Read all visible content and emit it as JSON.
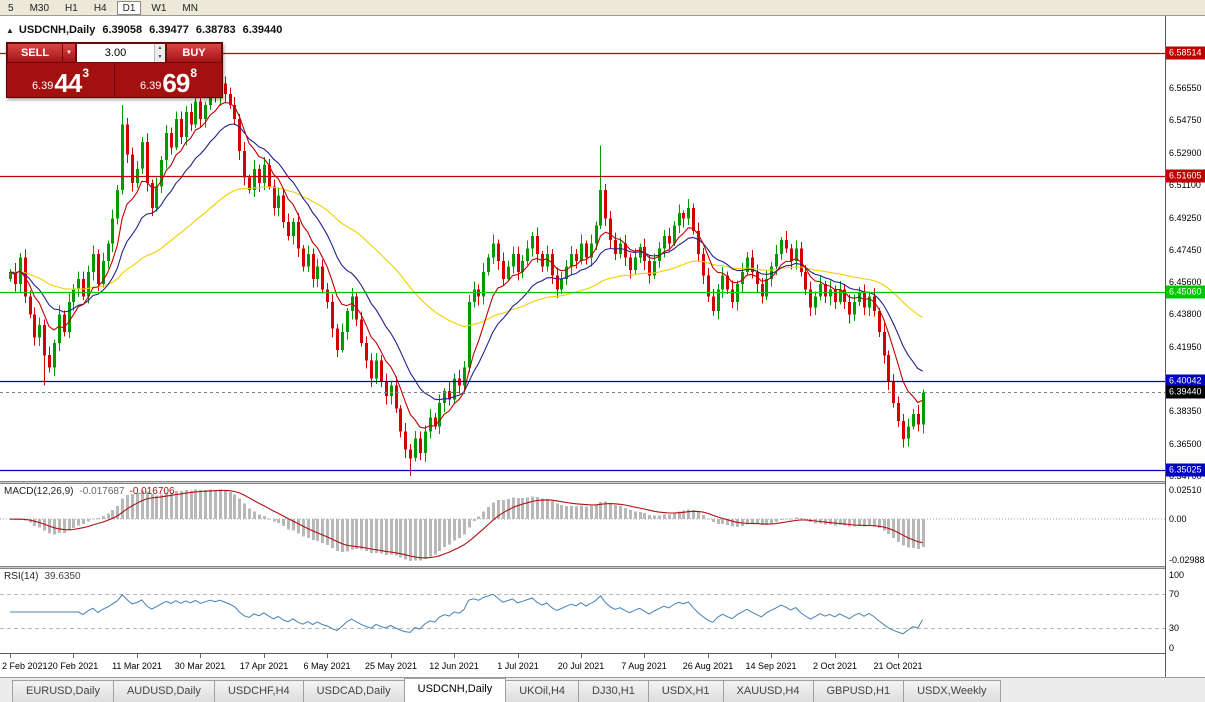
{
  "toolbar": {
    "timeframes": [
      "5",
      "M30",
      "H1",
      "H4",
      "D1",
      "W1",
      "MN"
    ],
    "active_timeframe": "D1"
  },
  "chart_title": {
    "symbol": "USDCNH,Daily",
    "open": "6.39058",
    "high": "6.39477",
    "low": "6.38783",
    "close": "6.39440"
  },
  "trade_panel": {
    "sell_label": "SELL",
    "buy_label": "BUY",
    "volume": "3.00",
    "bid": {
      "prefix": "6.39",
      "big": "44",
      "sup": "3"
    },
    "ask": {
      "prefix": "6.39",
      "big": "69",
      "sup": "8"
    },
    "panel_color": "#a31010"
  },
  "tabs": {
    "active_index": 4,
    "items": [
      "EURUSD,Daily",
      "AUDUSD,Daily",
      "USDCHF,H4",
      "USDCAD,Daily",
      "USDCNH,Daily",
      "UKOil,H4",
      "DJ30,H1",
      "USDX,H1",
      "XAUUSD,H4",
      "GBPUSD,H1",
      "USDX,Weekly"
    ]
  },
  "chart_data": {
    "type": "candlestick",
    "symbol": "USDCNH",
    "period": "Daily",
    "up_color": "#009a00",
    "down_color": "#d40000",
    "price_range": [
      6.3442,
      6.606
    ],
    "price_axis_ticks": [
      6.5655,
      6.5475,
      6.529,
      6.511,
      6.4925,
      6.4745,
      6.456,
      6.438,
      6.4195,
      6.4015,
      6.3835,
      6.365,
      6.347
    ],
    "price_axis_labels": [
      "6.56550",
      "6.54750",
      "6.52900",
      "6.51100",
      "6.49250",
      "6.47450",
      "6.45600",
      "6.43800",
      "6.41950",
      "6.40150",
      "6.38350",
      "6.36500",
      "6.34700"
    ],
    "hlines": [
      {
        "price": 6.58514,
        "label": "6.58514",
        "color": "#c00000"
      },
      {
        "price": 6.51605,
        "label": "6.51605",
        "color": "#c00000"
      },
      {
        "price": 6.4506,
        "label": "6.45060",
        "color": "#00c800"
      },
      {
        "price": 6.40042,
        "label": "6.40042",
        "color": "#0000c0"
      },
      {
        "price": 6.35025,
        "label": "6.35025",
        "color": "#0000c0"
      }
    ],
    "current_price": {
      "value": 6.3944,
      "label": "6.39440",
      "tag_color": "#000000"
    },
    "moving_averages": [
      {
        "period": 8,
        "color": "#c00000"
      },
      {
        "period": 17,
        "color": "#202090"
      },
      {
        "period": 55,
        "color": "#efd000"
      }
    ],
    "closes": [
      6.462,
      6.455,
      6.47,
      6.448,
      6.438,
      6.425,
      6.432,
      6.415,
      6.408,
      6.422,
      6.438,
      6.428,
      6.445,
      6.452,
      6.458,
      6.448,
      6.462,
      6.472,
      6.455,
      6.468,
      6.478,
      6.492,
      6.508,
      6.545,
      6.528,
      6.512,
      6.52,
      6.535,
      6.512,
      6.498,
      6.51,
      6.525,
      6.54,
      6.532,
      6.548,
      6.538,
      6.552,
      6.545,
      6.558,
      6.548,
      6.556,
      6.565,
      6.56,
      6.568,
      6.562,
      6.556,
      6.548,
      6.53,
      6.515,
      6.508,
      6.52,
      6.512,
      6.522,
      6.51,
      6.498,
      6.505,
      6.49,
      6.482,
      6.49,
      6.475,
      6.465,
      6.472,
      6.458,
      6.465,
      6.452,
      6.445,
      6.43,
      6.418,
      6.428,
      6.44,
      6.448,
      6.435,
      6.422,
      6.412,
      6.402,
      6.412,
      6.4,
      6.392,
      6.398,
      6.385,
      6.372,
      6.362,
      6.357,
      6.368,
      6.36,
      6.372,
      6.38,
      6.375,
      6.388,
      6.395,
      6.39,
      6.402,
      6.398,
      6.408,
      6.445,
      6.452,
      6.448,
      6.462,
      6.47,
      6.478,
      6.468,
      6.458,
      6.465,
      6.472,
      6.462,
      6.468,
      6.475,
      6.482,
      6.472,
      6.465,
      6.472,
      6.46,
      6.452,
      6.458,
      6.465,
      6.472,
      6.468,
      6.478,
      6.47,
      6.478,
      6.488,
      6.508,
      6.492,
      6.48,
      6.472,
      6.478,
      6.47,
      6.463,
      6.47,
      6.476,
      6.468,
      6.46,
      6.468,
      6.475,
      6.482,
      6.478,
      6.488,
      6.495,
      6.492,
      6.498,
      6.485,
      6.472,
      6.46,
      6.448,
      6.44,
      6.452,
      6.46,
      6.452,
      6.445,
      6.455,
      6.462,
      6.47,
      6.462,
      6.455,
      6.448,
      6.458,
      6.465,
      6.472,
      6.48,
      6.475,
      6.468,
      6.475,
      6.462,
      6.452,
      6.442,
      6.448,
      6.455,
      6.448,
      6.452,
      6.445,
      6.452,
      6.445,
      6.438,
      6.445,
      6.45,
      6.442,
      6.448,
      6.44,
      6.428,
      6.415,
      6.4,
      6.388,
      6.378,
      6.368,
      6.375,
      6.382,
      6.376,
      6.394
    ],
    "wick_overrides": {
      "7": {
        "l": 6.398
      },
      "23": {
        "h": 6.556
      },
      "43": {
        "h": 6.572
      },
      "82": {
        "l": 6.347
      },
      "121": {
        "h": 6.533
      },
      "183": {
        "l": 6.363
      }
    },
    "time_labels": [
      {
        "text": "2 Feb 2021",
        "index": 0
      },
      {
        "text": "20 Feb 2021",
        "index": 13
      },
      {
        "text": "11 Mar 2021",
        "index": 26
      },
      {
        "text": "30 Mar 2021",
        "index": 39
      },
      {
        "text": "17 Apr 2021",
        "index": 52
      },
      {
        "text": "6 May 2021",
        "index": 65
      },
      {
        "text": "25 May 2021",
        "index": 78
      },
      {
        "text": "12 Jun 2021",
        "index": 91
      },
      {
        "text": "1 Jul 2021",
        "index": 104
      },
      {
        "text": "20 Jul 2021",
        "index": 117
      },
      {
        "text": "7 Aug 2021",
        "index": 130
      },
      {
        "text": "26 Aug 2021",
        "index": 143
      },
      {
        "text": "14 Sep 2021",
        "index": 156
      },
      {
        "text": "2 Oct 2021",
        "index": 169
      },
      {
        "text": "21 Oct 2021",
        "index": 182
      }
    ],
    "macd": {
      "name": "MACD(12,26,9)",
      "value_main": "-0.017687",
      "value_signal": "-0.016706",
      "fast": 12,
      "slow": 26,
      "signal_period": 9,
      "axis_labels": [
        "0.02510",
        "0.00",
        "-0.02988"
      ],
      "histogram_color": "#b8b8b8",
      "signal_color": "#b01010"
    },
    "rsi": {
      "name": "RSI(14)",
      "value": "39.6350",
      "period": 14,
      "color": "#4682b4",
      "axis_labels": [
        "100",
        "70",
        "30",
        "0"
      ],
      "levels": [
        70,
        30
      ]
    }
  }
}
